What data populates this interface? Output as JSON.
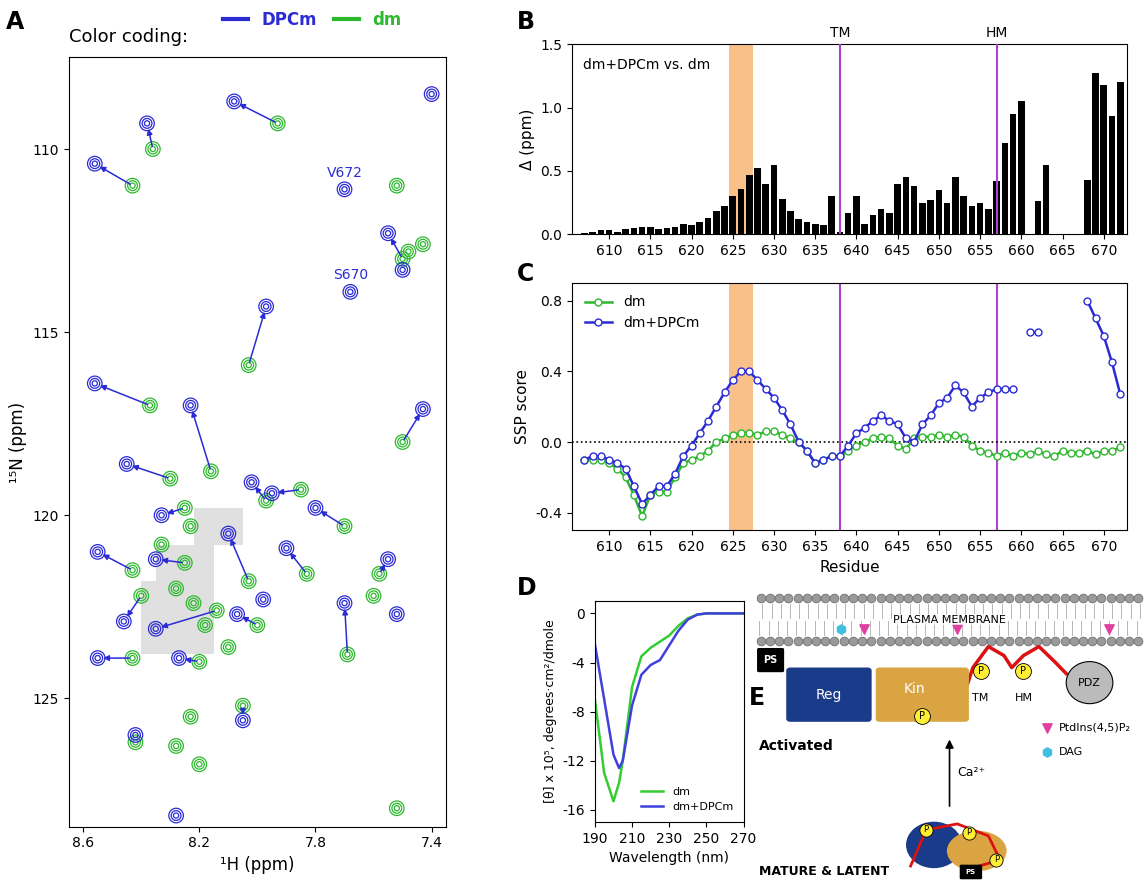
{
  "chart_data": [
    {
      "panel": "A",
      "type": "scatter",
      "title": "Color coding:",
      "legend": "upper left",
      "x_label": "¹H (ppm)",
      "y_label": "¹⁵N (ppm)",
      "xlim": [
        8.65,
        7.35
      ],
      "xticks": [
        8.6,
        8.2,
        7.8,
        7.4
      ],
      "ylim": [
        128.5,
        107.5
      ],
      "yticks": [
        110,
        115,
        120,
        125
      ],
      "series": [
        {
          "name": "DPCm",
          "color": "#2b2bd6",
          "marker": "circle",
          "points": [
            [
              8.08,
              108.7
            ],
            [
              8.38,
              109.3
            ],
            [
              8.56,
              110.4
            ],
            [
              7.55,
              112.3
            ],
            [
              8.56,
              116.4
            ],
            [
              7.97,
              114.3
            ],
            [
              8.23,
              117.0
            ],
            [
              7.43,
              117.1
            ],
            [
              8.45,
              118.6
            ],
            [
              8.33,
              120.0
            ],
            [
              8.55,
              121.0
            ],
            [
              8.1,
              120.5
            ],
            [
              7.8,
              119.8
            ],
            [
              7.9,
              120.9
            ],
            [
              8.46,
              122.9
            ],
            [
              8.55,
              123.9
            ],
            [
              8.07,
              122.7
            ],
            [
              7.7,
              122.4
            ],
            [
              7.55,
              121.2
            ],
            [
              8.05,
              125.6
            ],
            [
              8.02,
              119.1
            ],
            [
              8.27,
              123.9
            ],
            [
              7.95,
              119.4
            ],
            [
              8.35,
              123.1
            ],
            [
              8.35,
              121.2
            ],
            [
              7.7,
              111.1
            ],
            [
              7.68,
              113.9
            ],
            [
              7.4,
              108.5
            ],
            [
              8.28,
              128.2
            ],
            [
              8.42,
              126.0
            ],
            [
              7.98,
              122.3
            ],
            [
              7.52,
              122.7
            ],
            [
              7.5,
              113.3
            ]
          ]
        },
        {
          "name": "dm",
          "color": "#2db82d",
          "marker": "circle",
          "points": [
            [
              7.93,
              109.3
            ],
            [
              8.36,
              110.0
            ],
            [
              8.43,
              111.0
            ],
            [
              7.5,
              113.0
            ],
            [
              8.37,
              117.0
            ],
            [
              8.03,
              115.9
            ],
            [
              8.16,
              118.8
            ],
            [
              7.5,
              118.0
            ],
            [
              8.3,
              119.0
            ],
            [
              8.25,
              119.8
            ],
            [
              8.43,
              121.5
            ],
            [
              8.03,
              121.8
            ],
            [
              7.7,
              120.3
            ],
            [
              7.83,
              121.6
            ],
            [
              8.4,
              122.2
            ],
            [
              8.43,
              123.9
            ],
            [
              8.0,
              123.0
            ],
            [
              7.69,
              123.8
            ],
            [
              7.58,
              121.6
            ],
            [
              8.05,
              125.2
            ],
            [
              7.97,
              119.6
            ],
            [
              8.2,
              124.0
            ],
            [
              7.85,
              119.3
            ],
            [
              8.14,
              122.6
            ],
            [
              8.25,
              121.3
            ],
            [
              8.18,
              123.0
            ],
            [
              8.22,
              122.4
            ],
            [
              8.28,
              122.0
            ],
            [
              8.33,
              120.8
            ],
            [
              8.23,
              120.3
            ],
            [
              7.48,
              112.8
            ],
            [
              7.43,
              112.6
            ],
            [
              8.42,
              126.2
            ],
            [
              8.2,
              126.8
            ],
            [
              8.23,
              125.5
            ],
            [
              7.52,
              128.0
            ],
            [
              8.28,
              126.3
            ],
            [
              7.6,
              122.2
            ],
            [
              8.1,
              123.6
            ],
            [
              7.52,
              111.0
            ]
          ]
        }
      ],
      "arrows": [
        {
          "from": [
            7.93,
            109.3
          ],
          "to": [
            8.08,
            108.7
          ]
        },
        {
          "from": [
            8.36,
            110.0
          ],
          "to": [
            8.38,
            109.3
          ]
        },
        {
          "from": [
            8.43,
            111.0
          ],
          "to": [
            8.56,
            110.4
          ]
        },
        {
          "from": [
            7.5,
            113.0
          ],
          "to": [
            7.55,
            112.3
          ]
        },
        {
          "from": [
            8.37,
            117.0
          ],
          "to": [
            8.56,
            116.4
          ]
        },
        {
          "from": [
            8.03,
            115.9
          ],
          "to": [
            7.97,
            114.3
          ]
        },
        {
          "from": [
            8.16,
            118.8
          ],
          "to": [
            8.23,
            117.0
          ]
        },
        {
          "from": [
            7.5,
            118.0
          ],
          "to": [
            7.43,
            117.1
          ]
        },
        {
          "from": [
            8.3,
            119.0
          ],
          "to": [
            8.45,
            118.6
          ]
        },
        {
          "from": [
            8.25,
            119.8
          ],
          "to": [
            8.33,
            120.0
          ]
        },
        {
          "from": [
            8.43,
            121.5
          ],
          "to": [
            8.55,
            121.0
          ]
        },
        {
          "from": [
            8.03,
            121.8
          ],
          "to": [
            8.1,
            120.5
          ]
        },
        {
          "from": [
            7.7,
            120.3
          ],
          "to": [
            7.8,
            119.8
          ]
        },
        {
          "from": [
            7.83,
            121.6
          ],
          "to": [
            7.9,
            120.9
          ]
        },
        {
          "from": [
            8.4,
            122.2
          ],
          "to": [
            8.46,
            122.9
          ]
        },
        {
          "from": [
            8.43,
            123.9
          ],
          "to": [
            8.55,
            123.9
          ]
        },
        {
          "from": [
            8.0,
            123.0
          ],
          "to": [
            8.07,
            122.7
          ]
        },
        {
          "from": [
            7.69,
            123.8
          ],
          "to": [
            7.7,
            122.4
          ]
        },
        {
          "from": [
            7.58,
            121.6
          ],
          "to": [
            7.55,
            121.2
          ]
        },
        {
          "from": [
            8.05,
            125.2
          ],
          "to": [
            8.05,
            125.6
          ]
        },
        {
          "from": [
            7.97,
            119.6
          ],
          "to": [
            8.02,
            119.1
          ]
        },
        {
          "from": [
            8.2,
            124.0
          ],
          "to": [
            8.27,
            123.9
          ]
        },
        {
          "from": [
            7.85,
            119.3
          ],
          "to": [
            7.95,
            119.4
          ]
        },
        {
          "from": [
            8.14,
            122.6
          ],
          "to": [
            8.35,
            123.1
          ]
        },
        {
          "from": [
            8.25,
            121.3
          ],
          "to": [
            8.35,
            121.2
          ]
        }
      ],
      "peak_labels": [
        {
          "text": "V672",
          "point": [
            7.7,
            111.1
          ]
        },
        {
          "text": "S670",
          "point": [
            7.68,
            113.9
          ]
        }
      ]
    },
    {
      "panel": "B",
      "type": "bar",
      "color": "#000000",
      "y_label": "Δ (ppm)",
      "annotation": "dm+DPCm vs. dm",
      "x": [
        607,
        608,
        609,
        610,
        611,
        612,
        613,
        614,
        615,
        616,
        617,
        618,
        619,
        620,
        621,
        622,
        623,
        624,
        625,
        626,
        627,
        628,
        629,
        630,
        631,
        632,
        633,
        634,
        635,
        636,
        637,
        638,
        639,
        640,
        641,
        642,
        643,
        644,
        645,
        646,
        647,
        648,
        649,
        650,
        651,
        652,
        653,
        654,
        655,
        656,
        657,
        658,
        659,
        660,
        661,
        662,
        663,
        664,
        665,
        666,
        667,
        668,
        669,
        670,
        671,
        672
      ],
      "values": [
        0.01,
        0.02,
        0.03,
        0.03,
        0.02,
        0.04,
        0.05,
        0.06,
        0.06,
        0.04,
        0.05,
        0.06,
        0.08,
        0.07,
        0.1,
        0.13,
        0.18,
        0.22,
        0.3,
        0.36,
        0.47,
        0.52,
        0.4,
        0.55,
        0.28,
        0.18,
        0.12,
        0.1,
        0.08,
        0.07,
        0.3,
        0.02,
        0.17,
        0.3,
        0.08,
        0.15,
        0.2,
        0.17,
        0.4,
        0.45,
        0.38,
        0.25,
        0.27,
        0.35,
        0.25,
        0.45,
        0.3,
        0.22,
        0.25,
        0.2,
        0.42,
        0.72,
        0.95,
        1.05,
        null,
        0.26,
        0.55,
        null,
        null,
        null,
        null,
        0.43,
        1.27,
        1.18,
        0.93,
        1.2
      ],
      "xlim": [
        605.5,
        672.8
      ],
      "xticks": [
        610,
        615,
        620,
        625,
        630,
        635,
        640,
        645,
        650,
        655,
        660,
        665,
        670
      ],
      "ylim": [
        0,
        1.5
      ],
      "yticks": [
        0.0,
        0.5,
        1.0,
        1.5
      ],
      "highlight": [
        624.5,
        627.5
      ],
      "vlines": [
        {
          "x": 638,
          "label": "TM"
        },
        {
          "x": 657,
          "label": "HM"
        }
      ]
    },
    {
      "panel": "C",
      "type": "line",
      "y_label": "SSP score",
      "x_label": "Residue",
      "legend": "upper left",
      "x": [
        607,
        608,
        609,
        610,
        611,
        612,
        613,
        614,
        615,
        616,
        617,
        618,
        619,
        620,
        621,
        622,
        623,
        624,
        625,
        626,
        627,
        628,
        629,
        630,
        631,
        632,
        633,
        634,
        635,
        636,
        637,
        638,
        639,
        640,
        641,
        642,
        643,
        644,
        645,
        646,
        647,
        648,
        649,
        650,
        651,
        652,
        653,
        654,
        655,
        656,
        657,
        658,
        659,
        660,
        661,
        662,
        663,
        664,
        665,
        666,
        667,
        668,
        669,
        670,
        671,
        672
      ],
      "series": [
        {
          "name": "dm",
          "color": "#2db82d",
          "marker": "circle",
          "line_style": "solid",
          "values": [
            -0.1,
            -0.1,
            -0.1,
            -0.12,
            -0.15,
            -0.2,
            -0.3,
            -0.42,
            -0.3,
            -0.28,
            -0.28,
            -0.2,
            -0.12,
            -0.1,
            -0.08,
            -0.05,
            0.0,
            0.02,
            0.04,
            0.05,
            0.05,
            0.04,
            0.06,
            0.06,
            0.04,
            0.02,
            0.0,
            -0.05,
            -0.12,
            -0.1,
            -0.08,
            -0.08,
            -0.05,
            -0.02,
            0.0,
            0.02,
            0.03,
            0.02,
            -0.02,
            -0.04,
            0.02,
            0.03,
            0.03,
            0.04,
            0.03,
            0.04,
            0.03,
            -0.02,
            -0.05,
            -0.06,
            -0.08,
            -0.06,
            -0.08,
            -0.06,
            -0.07,
            -0.05,
            -0.07,
            -0.08,
            -0.05,
            -0.06,
            -0.06,
            -0.05,
            -0.07,
            -0.05,
            -0.05,
            -0.03
          ]
        },
        {
          "name": "dm+DPCm",
          "color": "#2b2bd6",
          "marker": "circle",
          "line_style": "solid",
          "values": [
            -0.1,
            -0.08,
            -0.08,
            -0.1,
            -0.12,
            -0.15,
            -0.25,
            -0.35,
            -0.3,
            -0.25,
            -0.25,
            -0.18,
            -0.08,
            -0.02,
            0.05,
            0.12,
            0.2,
            0.28,
            0.35,
            0.4,
            0.4,
            0.35,
            0.3,
            0.25,
            0.18,
            0.1,
            0.0,
            -0.05,
            -0.12,
            -0.1,
            -0.08,
            -0.08,
            -0.02,
            0.05,
            0.08,
            0.12,
            0.15,
            0.12,
            0.1,
            0.02,
            0.0,
            0.1,
            0.15,
            0.22,
            0.25,
            0.32,
            0.28,
            0.2,
            0.25,
            0.28,
            0.3,
            0.3,
            0.3,
            null,
            0.62,
            0.62,
            null,
            null,
            null,
            null,
            null,
            0.8,
            0.7,
            0.6,
            0.45,
            0.27
          ]
        }
      ],
      "xlim": [
        605.5,
        672.8
      ],
      "xticks": [
        610,
        615,
        620,
        625,
        630,
        635,
        640,
        645,
        650,
        655,
        660,
        665,
        670
      ],
      "ylim": [
        -0.5,
        0.9
      ],
      "yticks": [
        -0.4,
        0.0,
        0.4,
        0.8
      ],
      "hline": 0.0,
      "highlight": [
        624.5,
        627.5
      ],
      "vlines": [
        638,
        657
      ]
    },
    {
      "panel": "D",
      "type": "line",
      "x_label": "Wavelength (nm)",
      "y_label": "[θ] x 10⁵, degrees·cm²/dmole",
      "legend": "lower right",
      "x": [
        190,
        195,
        200,
        203,
        205,
        210,
        215,
        220,
        225,
        230,
        235,
        240,
        245,
        250,
        260,
        270
      ],
      "series": [
        {
          "name": "dm",
          "color": "#33cc33",
          "line_style": "solid",
          "values": [
            -7,
            -13,
            -15.3,
            -13.8,
            -12,
            -6,
            -3.5,
            -2.8,
            -2.3,
            -1.8,
            -1,
            -0.4,
            -0.1,
            0,
            0,
            0
          ]
        },
        {
          "name": "dm+DPCm",
          "color": "#4040dd",
          "line_style": "solid",
          "values": [
            -2.5,
            -7,
            -11.5,
            -12.6,
            -12,
            -7.5,
            -5,
            -4.2,
            -3.8,
            -2.6,
            -1.4,
            -0.5,
            -0.1,
            0,
            0,
            0
          ]
        }
      ],
      "xlim": [
        190,
        270
      ],
      "xticks": [
        190,
        210,
        230,
        250,
        270
      ],
      "ylim": [
        -17,
        1
      ],
      "yticks": [
        0,
        -4,
        -8,
        -12,
        -16
      ]
    }
  ],
  "diagram": {
    "panel": "E",
    "membrane": "PLASMA MEMBRANE",
    "lipid_head": "PS",
    "domains": [
      "Reg",
      "Kin",
      "PDZ"
    ],
    "phospho": "P",
    "motifs": [
      "TM",
      "HM"
    ],
    "states": [
      "Activated",
      "MATURE & LATENT"
    ],
    "trigger": "Ca²⁺",
    "lipids": [
      "PtdIns(4,5)P₂",
      "DAG"
    ]
  }
}
